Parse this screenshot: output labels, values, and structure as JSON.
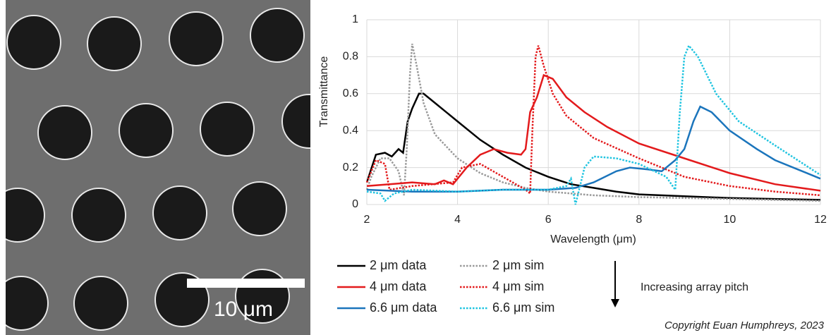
{
  "image": {
    "scale_bar_label": "10 μm"
  },
  "footer": {
    "copyright": "Copyright Euan Humphreys, 2023"
  },
  "chart_data": {
    "type": "line",
    "xlabel": "Wavelength (μm)",
    "ylabel": "Transmittance",
    "annotation": "Increasing array pitch",
    "xlim": [
      2,
      12
    ],
    "xticks": [
      2,
      4,
      6,
      8,
      10,
      12
    ],
    "ylim": [
      0,
      1
    ],
    "yticks": [
      0,
      0.2,
      0.4,
      0.6,
      0.8,
      1
    ],
    "grid": true,
    "legend_position": "bottom",
    "series": [
      {
        "name": "2 μm data",
        "color": "#000000",
        "style": "solid",
        "x": [
          2,
          2.2,
          2.4,
          2.55,
          2.7,
          2.8,
          2.9,
          3.0,
          3.15,
          3.25,
          3.5,
          4,
          4.5,
          5,
          5.5,
          6,
          6.5,
          7,
          7.5,
          8,
          9,
          10,
          11,
          12
        ],
        "values": [
          0.12,
          0.27,
          0.28,
          0.26,
          0.3,
          0.28,
          0.45,
          0.52,
          0.6,
          0.6,
          0.55,
          0.45,
          0.35,
          0.27,
          0.2,
          0.15,
          0.11,
          0.09,
          0.07,
          0.055,
          0.045,
          0.035,
          0.03,
          0.025
        ]
      },
      {
        "name": "2 μm sim",
        "color": "#999999",
        "style": "dotted",
        "x": [
          2,
          2.1,
          2.3,
          2.5,
          2.7,
          2.82,
          2.88,
          2.95,
          3.0,
          3.1,
          3.25,
          3.5,
          4,
          4.5,
          5,
          5.5,
          6,
          7,
          8,
          10,
          12
        ],
        "values": [
          0.08,
          0.15,
          0.25,
          0.25,
          0.18,
          0.05,
          0.3,
          0.7,
          0.87,
          0.75,
          0.55,
          0.38,
          0.25,
          0.17,
          0.12,
          0.09,
          0.07,
          0.05,
          0.04,
          0.03,
          0.02
        ]
      },
      {
        "name": "4 μm data",
        "color": "#e31a1c",
        "style": "solid",
        "x": [
          2,
          2.5,
          3,
          3.5,
          3.7,
          3.9,
          4.2,
          4.5,
          4.8,
          5.1,
          5.4,
          5.5,
          5.6,
          5.75,
          5.9,
          6.1,
          6.4,
          6.8,
          7.3,
          8,
          9,
          10,
          11,
          12
        ],
        "values": [
          0.1,
          0.11,
          0.12,
          0.11,
          0.13,
          0.11,
          0.2,
          0.27,
          0.3,
          0.28,
          0.27,
          0.3,
          0.5,
          0.58,
          0.7,
          0.68,
          0.58,
          0.5,
          0.42,
          0.33,
          0.25,
          0.17,
          0.11,
          0.075
        ]
      },
      {
        "name": "4 μm sim",
        "color": "#e31a1c",
        "style": "dotted",
        "x": [
          2,
          2.2,
          2.4,
          2.5,
          3,
          3.9,
          4.1,
          4.5,
          5,
          5.5,
          5.6,
          5.65,
          5.72,
          5.78,
          5.9,
          6.1,
          6.4,
          7,
          8,
          9,
          10,
          11,
          12
        ],
        "values": [
          0.12,
          0.24,
          0.22,
          0.08,
          0.1,
          0.12,
          0.2,
          0.22,
          0.15,
          0.08,
          0.06,
          0.4,
          0.8,
          0.86,
          0.75,
          0.6,
          0.48,
          0.36,
          0.25,
          0.15,
          0.1,
          0.07,
          0.05
        ]
      },
      {
        "name": "6.6 μm data",
        "color": "#1b75bc",
        "style": "solid",
        "x": [
          2,
          3,
          4,
          5,
          6,
          6.6,
          7,
          7.5,
          7.8,
          8.2,
          8.5,
          8.8,
          9,
          9.2,
          9.35,
          9.6,
          10,
          10.6,
          11,
          11.6,
          12
        ],
        "values": [
          0.08,
          0.07,
          0.07,
          0.08,
          0.08,
          0.09,
          0.12,
          0.18,
          0.2,
          0.19,
          0.18,
          0.24,
          0.3,
          0.45,
          0.53,
          0.5,
          0.4,
          0.3,
          0.24,
          0.18,
          0.14
        ]
      },
      {
        "name": "6.6 μm sim",
        "color": "#1fc4e0",
        "style": "dotted",
        "x": [
          2,
          2.3,
          2.4,
          2.6,
          3,
          4,
          5,
          6,
          6.4,
          6.5,
          6.6,
          6.8,
          7,
          7.5,
          8,
          8.6,
          8.8,
          8.9,
          9.0,
          9.1,
          9.3,
          9.7,
          10.2,
          11,
          12
        ],
        "values": [
          0.07,
          0.06,
          0.02,
          0.06,
          0.08,
          0.07,
          0.08,
          0.08,
          0.1,
          0.14,
          0.0,
          0.2,
          0.26,
          0.25,
          0.22,
          0.15,
          0.08,
          0.5,
          0.8,
          0.86,
          0.8,
          0.6,
          0.45,
          0.32,
          0.16
        ]
      }
    ]
  }
}
